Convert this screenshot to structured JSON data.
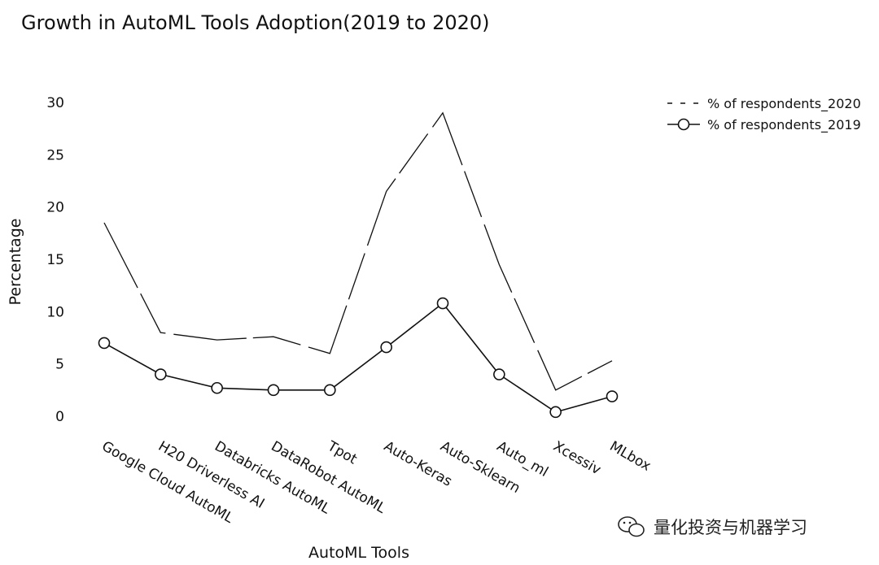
{
  "chart_data": {
    "type": "line",
    "title": "Growth in AutoML Tools Adoption(2019 to 2020)",
    "xlabel": "AutoML Tools",
    "ylabel": "Percentage",
    "categories": [
      "Google Cloud AutoML",
      "H20 Driverless AI",
      "Databricks AutoML",
      "DataRobot AutoML",
      "Tpot",
      "Auto-Keras",
      "Auto-Sklearn",
      "Auto_ml",
      "Xcessiv",
      "MLbox"
    ],
    "series": [
      {
        "name": "% of respondents_2020",
        "values": [
          18.5,
          8.0,
          7.3,
          7.6,
          6.0,
          21.5,
          29.0,
          14.5,
          2.5,
          5.3
        ],
        "color": "#111111",
        "style": "dashed-line"
      },
      {
        "name": "% of respondents_2019",
        "values": [
          7.0,
          4.0,
          2.7,
          2.5,
          2.5,
          6.6,
          10.8,
          4.0,
          0.4,
          1.9
        ],
        "color": "#111111",
        "style": "line-with-open-circle-markers"
      }
    ],
    "yticks": [
      "0",
      "5",
      "10",
      "15",
      "20",
      "25",
      "30"
    ],
    "ylim": [
      0,
      30
    ],
    "grid": false,
    "legend_position": "top-right"
  },
  "watermark": {
    "text": "量化投资与机器学习",
    "icon": "wechat-icon"
  }
}
